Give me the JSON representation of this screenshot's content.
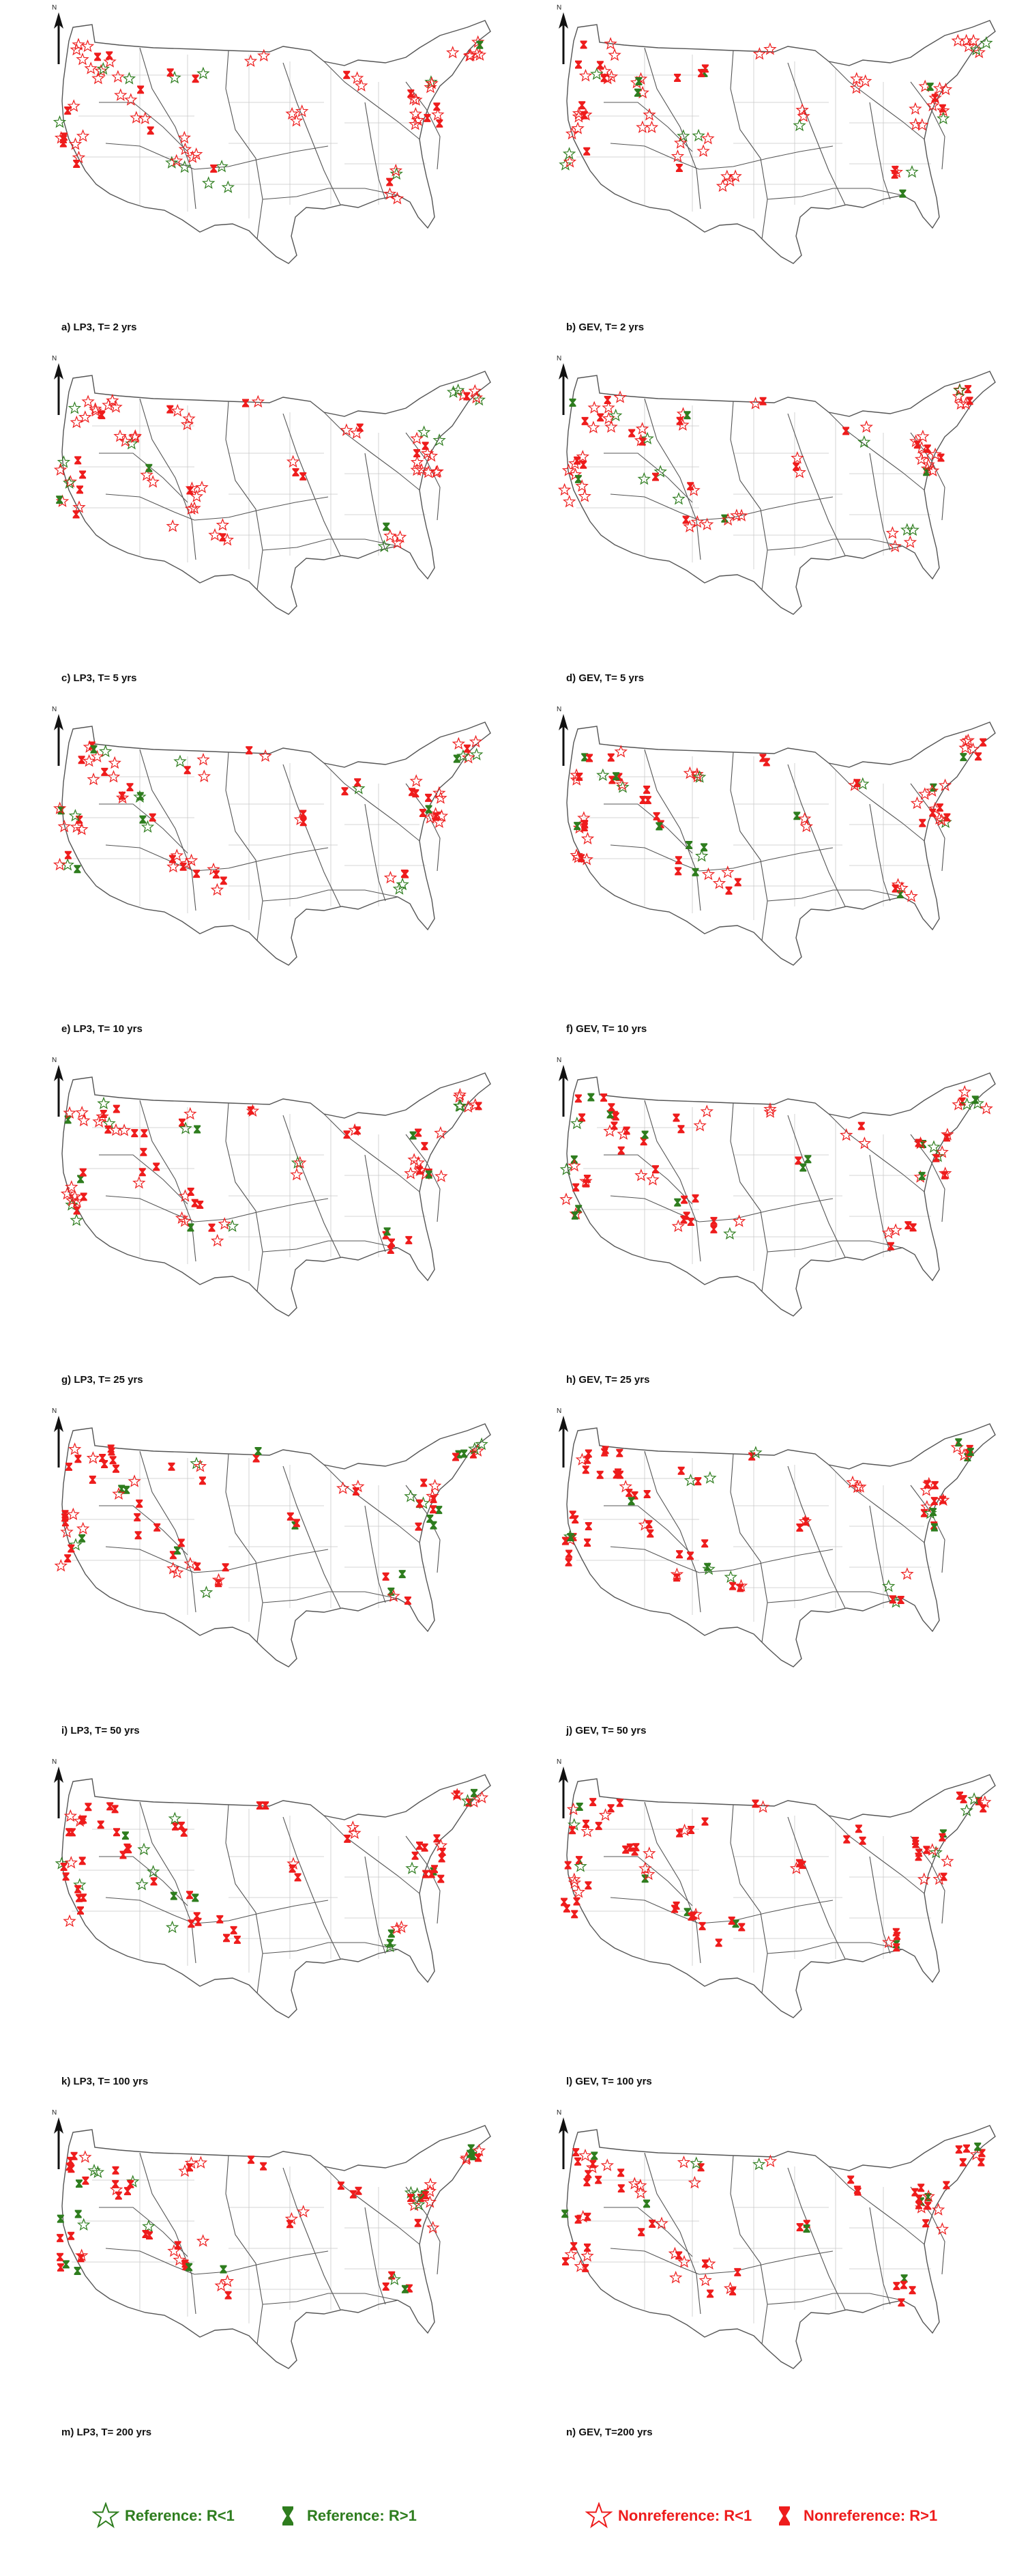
{
  "map": {
    "north_label": "N",
    "colors": {
      "reference": "#2e7d1e",
      "nonreference": "#ee1c1c",
      "basin_outline": "#555555",
      "state_outline": "#c9c9c9"
    },
    "panels": [
      {
        "id": "a",
        "caption": "a) LP3, T= 2 yrs"
      },
      {
        "id": "b",
        "caption": "b) GEV, T= 2 yrs"
      },
      {
        "id": "c",
        "caption": "c) LP3, T= 5 yrs"
      },
      {
        "id": "d",
        "caption": "d) GEV, T= 5 yrs"
      },
      {
        "id": "e",
        "caption": "e) LP3, T= 10 yrs"
      },
      {
        "id": "f",
        "caption": "f) GEV, T= 10 yrs"
      },
      {
        "id": "g",
        "caption": "g) LP3, T= 25 yrs"
      },
      {
        "id": "h",
        "caption": "h) GEV, T= 25 yrs"
      },
      {
        "id": "i",
        "caption": "i) LP3, T= 50 yrs"
      },
      {
        "id": "j",
        "caption": "j) GEV, T= 50 yrs"
      },
      {
        "id": "k",
        "caption": "k) LP3, T= 100 yrs"
      },
      {
        "id": "l",
        "caption": "l) GEV, T= 100 yrs"
      },
      {
        "id": "m",
        "caption": "m) LP3, T= 200 yrs"
      },
      {
        "id": "n",
        "caption": "n) GEV, T=200 yrs"
      }
    ]
  },
  "legend": {
    "ref_lt1": {
      "label": "Reference: R<1",
      "icon": "star-outline-icon"
    },
    "ref_gt1": {
      "label": "Reference: R>1",
      "icon": "hourglass-icon"
    },
    "nonref_lt1": {
      "label": "Nonreference: R<1",
      "icon": "star-outline-icon"
    },
    "nonref_gt1": {
      "label": "Nonreference: R>1",
      "icon": "hourglass-icon"
    }
  }
}
